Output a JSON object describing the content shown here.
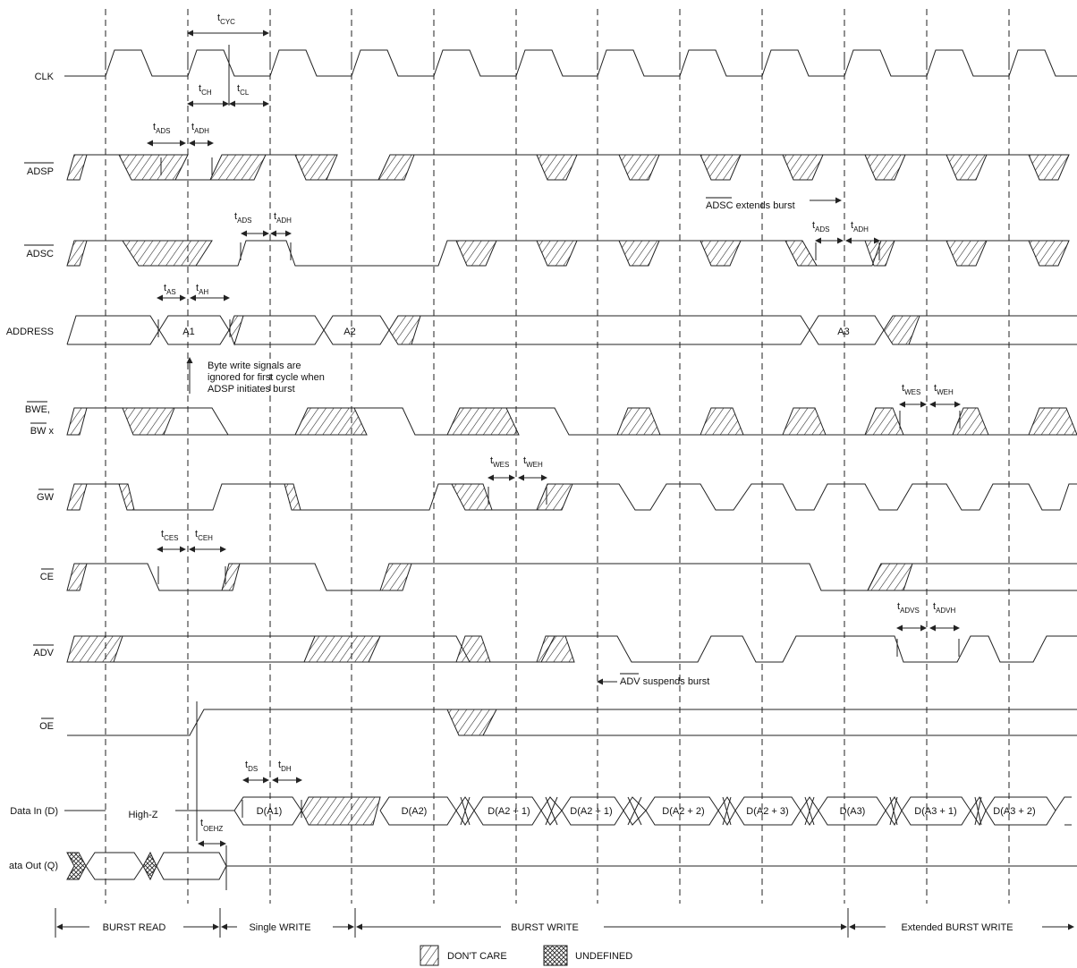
{
  "signals": [
    {
      "key": "clk",
      "name": "CLK",
      "overline": false
    },
    {
      "key": "adsp",
      "name": "ADSP",
      "overline": true
    },
    {
      "key": "adsc",
      "name": "ADSC",
      "overline": true
    },
    {
      "key": "address",
      "name": "ADDRESS",
      "overline": false
    },
    {
      "key": "bwe",
      "name": "BWE,",
      "name2": "BW x",
      "overline": true
    },
    {
      "key": "gw",
      "name": "GW",
      "overline": true
    },
    {
      "key": "ce",
      "name": "CE",
      "overline": true
    },
    {
      "key": "adv",
      "name": "ADV",
      "overline": true
    },
    {
      "key": "oe",
      "name": "OE",
      "overline": true
    },
    {
      "key": "din",
      "name": "Data In (D)",
      "overline": false
    },
    {
      "key": "dout",
      "name": "ata Out (Q)",
      "overline": false
    }
  ],
  "timing": {
    "tcyc": {
      "t": "t",
      "s": "CYC"
    },
    "tch": {
      "t": "t",
      "s": "CH"
    },
    "tcl": {
      "t": "t",
      "s": "CL"
    },
    "tads1": {
      "t": "t",
      "s": "ADS"
    },
    "tadh1": {
      "t": "t",
      "s": "ADH"
    },
    "tads2": {
      "t": "t",
      "s": "ADS"
    },
    "tadh2": {
      "t": "t",
      "s": "ADH"
    },
    "tads3": {
      "t": "t",
      "s": "ADS"
    },
    "tadh3": {
      "t": "t",
      "s": "ADH"
    },
    "tas": {
      "t": "t",
      "s": "AS"
    },
    "tah": {
      "t": "t",
      "s": "AH"
    },
    "twes1": {
      "t": "t",
      "s": "WES"
    },
    "tweh1": {
      "t": "t",
      "s": "WEH"
    },
    "twes2": {
      "t": "t",
      "s": "WES"
    },
    "tweh2": {
      "t": "t",
      "s": "WEH"
    },
    "tces": {
      "t": "t",
      "s": "CES"
    },
    "tceh": {
      "t": "t",
      "s": "CEH"
    },
    "tadvs": {
      "t": "t",
      "s": "ADVS"
    },
    "tadvh": {
      "t": "t",
      "s": "ADVH"
    },
    "tds": {
      "t": "t",
      "s": "DS"
    },
    "tdh": {
      "t": "t",
      "s": "DH"
    },
    "toehz": {
      "t": "t",
      "s": "OEHZ"
    }
  },
  "address_values": [
    "A1",
    "A2",
    "A3"
  ],
  "data_in": {
    "highz": "High-Z",
    "values": [
      "D(A1)",
      "D(A2)",
      "D(A2 + 1)",
      "D(A2 + 1)",
      "D(A2 + 2)",
      "D(A2 + 3)",
      "D(A3)",
      "D(A3 + 1)",
      "D(A3 + 2)"
    ]
  },
  "notes": {
    "byte_write": [
      "Byte write signals are",
      "ignored for first cycle when",
      "ADSP initiates burst"
    ],
    "adsc_extends": "ADSC extends burst",
    "adsc_extends_overline": "ADSC",
    "adv_suspends": "ADV suspends burst",
    "adv_suspends_overline": "ADV"
  },
  "phases": [
    {
      "label": "BURST READ"
    },
    {
      "label": "Single WRITE"
    },
    {
      "label": "BURST WRITE"
    },
    {
      "label": "Extended BURST WRITE"
    }
  ],
  "legend": {
    "dont_care": "DON'T CARE",
    "undefined": "UNDEFINED"
  }
}
